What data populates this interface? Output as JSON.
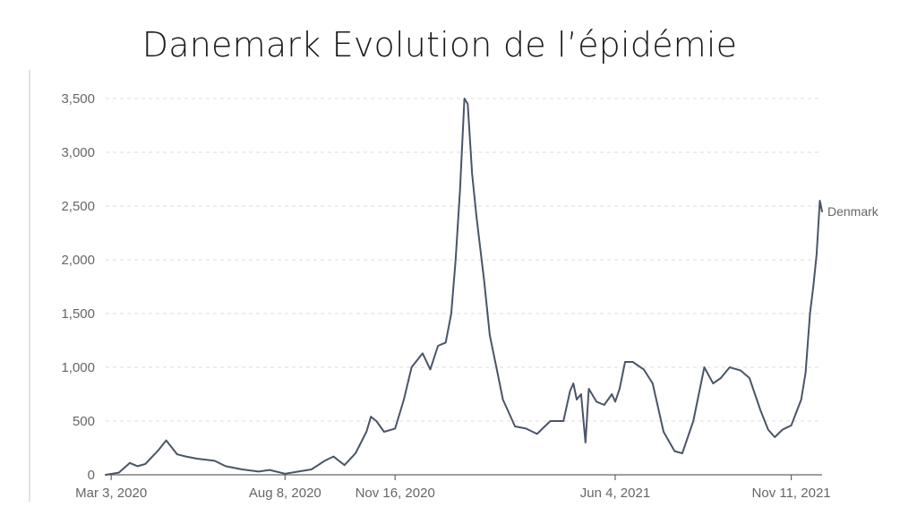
{
  "slide": {
    "title": "Danemark Evolution de l’épidémie"
  },
  "chart_data": {
    "type": "line",
    "title": "Danemark Evolution de l’épidémie",
    "xlabel": "",
    "ylabel": "",
    "ylim": [
      0,
      3500
    ],
    "xlim": [
      "2020-02-27",
      "2021-12-09"
    ],
    "y_ticks": [
      0,
      500,
      1000,
      1500,
      2000,
      2500,
      3000,
      3500
    ],
    "y_tick_labels": [
      "0",
      "500",
      "1,000",
      "1,500",
      "2,000",
      "2,500",
      "3,000",
      "3,500"
    ],
    "x_ticks": [
      {
        "date": "2020-03-03",
        "label": "Mar 3, 2020"
      },
      {
        "date": "2020-08-08",
        "label": "Aug 8, 2020"
      },
      {
        "date": "2020-11-16",
        "label": "Nov 16, 2020"
      },
      {
        "date": "2021-06-04",
        "label": "Jun 4, 2021"
      },
      {
        "date": "2021-11-11",
        "label": "Nov 11, 2021"
      }
    ],
    "grid": "horizontal-dashed",
    "series": [
      {
        "name": "Denmark",
        "color": "#4a5568",
        "points": [
          [
            "2020-02-27",
            0
          ],
          [
            "2020-03-10",
            20
          ],
          [
            "2020-03-20",
            110
          ],
          [
            "2020-03-27",
            80
          ],
          [
            "2020-04-03",
            100
          ],
          [
            "2020-04-15",
            230
          ],
          [
            "2020-04-22",
            320
          ],
          [
            "2020-05-02",
            190
          ],
          [
            "2020-05-10",
            170
          ],
          [
            "2020-05-20",
            150
          ],
          [
            "2020-06-05",
            130
          ],
          [
            "2020-06-15",
            80
          ],
          [
            "2020-06-30",
            50
          ],
          [
            "2020-07-15",
            30
          ],
          [
            "2020-07-25",
            45
          ],
          [
            "2020-08-08",
            10
          ],
          [
            "2020-08-20",
            30
          ],
          [
            "2020-09-01",
            50
          ],
          [
            "2020-09-13",
            130
          ],
          [
            "2020-09-21",
            170
          ],
          [
            "2020-10-01",
            90
          ],
          [
            "2020-10-11",
            200
          ],
          [
            "2020-10-21",
            400
          ],
          [
            "2020-10-25",
            540
          ],
          [
            "2020-10-30",
            500
          ],
          [
            "2020-11-06",
            400
          ],
          [
            "2020-11-16",
            430
          ],
          [
            "2020-11-24",
            700
          ],
          [
            "2020-12-01",
            1000
          ],
          [
            "2020-12-11",
            1130
          ],
          [
            "2020-12-18",
            980
          ],
          [
            "2020-12-25",
            1200
          ],
          [
            "2021-01-01",
            1230
          ],
          [
            "2021-01-06",
            1500
          ],
          [
            "2021-01-10",
            2000
          ],
          [
            "2021-01-14",
            2650
          ],
          [
            "2021-01-18",
            3500
          ],
          [
            "2021-01-21",
            3450
          ],
          [
            "2021-01-25",
            2800
          ],
          [
            "2021-01-29",
            2400
          ],
          [
            "2021-02-05",
            1800
          ],
          [
            "2021-02-10",
            1300
          ],
          [
            "2021-02-16",
            1000
          ],
          [
            "2021-02-22",
            700
          ],
          [
            "2021-03-05",
            450
          ],
          [
            "2021-03-15",
            430
          ],
          [
            "2021-03-25",
            380
          ],
          [
            "2021-04-06",
            500
          ],
          [
            "2021-04-18",
            500
          ],
          [
            "2021-04-24",
            780
          ],
          [
            "2021-04-27",
            850
          ],
          [
            "2021-04-30",
            700
          ],
          [
            "2021-05-04",
            750
          ],
          [
            "2021-05-08",
            300
          ],
          [
            "2021-05-11",
            800
          ],
          [
            "2021-05-18",
            680
          ],
          [
            "2021-05-25",
            650
          ],
          [
            "2021-06-01",
            750
          ],
          [
            "2021-06-04",
            680
          ],
          [
            "2021-06-08",
            800
          ],
          [
            "2021-06-13",
            1050
          ],
          [
            "2021-06-20",
            1050
          ],
          [
            "2021-06-30",
            980
          ],
          [
            "2021-07-08",
            850
          ],
          [
            "2021-07-18",
            400
          ],
          [
            "2021-07-28",
            220
          ],
          [
            "2021-08-04",
            200
          ],
          [
            "2021-08-14",
            500
          ],
          [
            "2021-08-24",
            1000
          ],
          [
            "2021-09-01",
            850
          ],
          [
            "2021-09-08",
            900
          ],
          [
            "2021-09-16",
            1000
          ],
          [
            "2021-09-26",
            970
          ],
          [
            "2021-10-04",
            900
          ],
          [
            "2021-10-14",
            600
          ],
          [
            "2021-10-21",
            420
          ],
          [
            "2021-10-27",
            350
          ],
          [
            "2021-11-03",
            420
          ],
          [
            "2021-11-11",
            460
          ],
          [
            "2021-11-20",
            700
          ],
          [
            "2021-11-24",
            950
          ],
          [
            "2021-11-28",
            1500
          ],
          [
            "2021-12-01",
            1750
          ],
          [
            "2021-12-04",
            2050
          ],
          [
            "2021-12-07",
            2550
          ],
          [
            "2021-12-09",
            2450
          ]
        ]
      }
    ]
  }
}
